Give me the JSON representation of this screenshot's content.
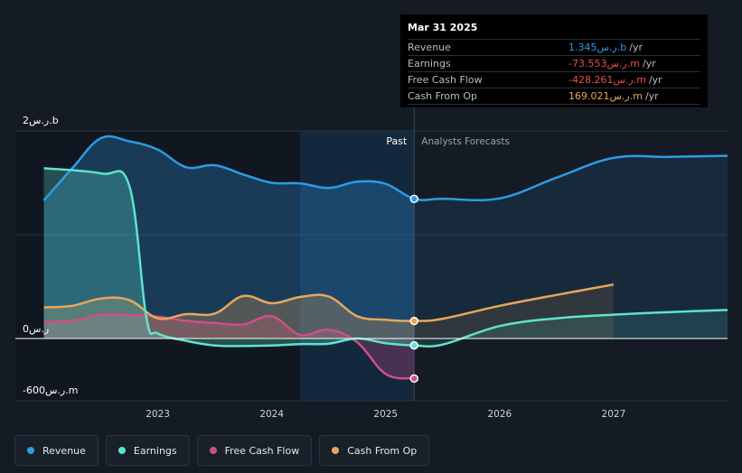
{
  "chart_data": {
    "type": "line",
    "title": "",
    "currency_suffix": "ر.س",
    "y_unit_labels": [
      "2ر.س.b",
      "0ر.س",
      "-600ر.س.m"
    ],
    "ylim": [
      -600,
      2000
    ],
    "x_ticks": [
      "2023",
      "2024",
      "2025",
      "2026",
      "2027"
    ],
    "x_tick_values": [
      2023,
      2024,
      2025,
      2026,
      2027
    ],
    "xlim": [
      2021.75,
      2028.0
    ],
    "divider_x": 2025.25,
    "past_label": "Past",
    "forecast_label": "Analysts Forecasts",
    "series": [
      {
        "name": "Revenue",
        "color": "#2d9be8",
        "fill": true,
        "x": [
          2022.0,
          2022.25,
          2022.5,
          2022.75,
          2023.0,
          2023.25,
          2023.5,
          2023.75,
          2024.0,
          2024.25,
          2024.5,
          2024.75,
          2025.0,
          2025.25,
          2025.5,
          2026.0,
          2026.5,
          2027.0,
          2027.5,
          2028.0
        ],
        "y": [
          1330,
          1640,
          1930,
          1900,
          1820,
          1650,
          1670,
          1580,
          1500,
          1495,
          1450,
          1510,
          1490,
          1345,
          1345,
          1350,
          1550,
          1740,
          1750,
          1760
        ]
      },
      {
        "name": "Earnings",
        "color": "#5ee3cd",
        "fill": true,
        "x": [
          2022.0,
          2022.5,
          2022.75,
          2022.9,
          2023.0,
          2023.25,
          2023.5,
          2023.75,
          2024.0,
          2024.25,
          2024.5,
          2024.75,
          2025.0,
          2025.25,
          2025.5,
          2026.0,
          2026.5,
          2027.0,
          2027.5,
          2028.0
        ],
        "y": [
          1640,
          1590,
          1470,
          200,
          50,
          -25,
          -75,
          -80,
          -75,
          -60,
          -55,
          0,
          -50,
          -73.553,
          -65,
          120,
          195,
          230,
          255,
          275
        ]
      },
      {
        "name": "Free Cash Flow",
        "color": "#d04e87",
        "fill": true,
        "x": [
          2022.0,
          2022.25,
          2022.5,
          2022.75,
          2023.0,
          2023.25,
          2023.5,
          2023.75,
          2024.0,
          2024.25,
          2024.5,
          2024.75,
          2025.0,
          2025.25
        ],
        "y": [
          160,
          170,
          230,
          225,
          210,
          170,
          150,
          135,
          215,
          35,
          85,
          -40,
          -380,
          -428.261
        ]
      },
      {
        "name": "Cash From Op",
        "color": "#e7a75a",
        "fill": true,
        "x": [
          2022.0,
          2022.25,
          2022.5,
          2022.75,
          2023.0,
          2023.25,
          2023.5,
          2023.75,
          2024.0,
          2024.25,
          2024.5,
          2024.75,
          2025.0,
          2025.25,
          2025.5,
          2026.0,
          2026.5,
          2027.0
        ],
        "y": [
          300,
          315,
          385,
          370,
          195,
          235,
          240,
          410,
          340,
          400,
          405,
          215,
          180,
          169.021,
          190,
          315,
          420,
          520
        ]
      }
    ]
  },
  "tooltip": {
    "date": "Mar 31 2025",
    "rows": [
      {
        "label": "Revenue",
        "value": "1.345ر.س.b",
        "unit": "/yr",
        "color": "#2d9be8"
      },
      {
        "label": "Earnings",
        "value": "-73.553ر.س.m",
        "unit": "/yr",
        "color": "#ec4c4c"
      },
      {
        "label": "Free Cash Flow",
        "value": "-428.261ر.س.m",
        "unit": "/yr",
        "color": "#ec4c4c"
      },
      {
        "label": "Cash From Op",
        "value": "169.021ر.س.m",
        "unit": "/yr",
        "color": "#e7a75a"
      }
    ]
  },
  "legend": [
    {
      "label": "Revenue",
      "color": "#2d9be8"
    },
    {
      "label": "Earnings",
      "color": "#5ee3cd"
    },
    {
      "label": "Free Cash Flow",
      "color": "#d04e87"
    },
    {
      "label": "Cash From Op",
      "color": "#e7a75a"
    }
  ]
}
